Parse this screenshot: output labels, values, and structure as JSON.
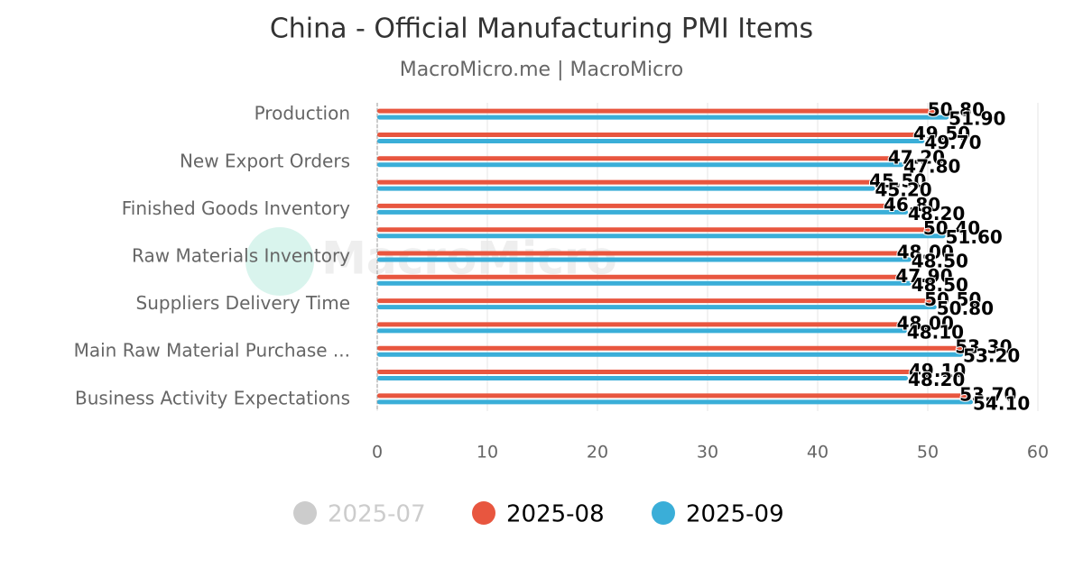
{
  "chart_data": {
    "type": "hbar",
    "title": "China - Official Manufacturing PMI Items",
    "subtitle": "MacroMicro.me | MacroMicro",
    "watermark": "MacroMicro",
    "categories": [
      "Production",
      null,
      "New Export Orders",
      null,
      "Finished Goods Inventory",
      null,
      "Raw Materials Inventory",
      null,
      "Suppliers Delivery Time",
      null,
      "Main Raw Material Purchase ...",
      null,
      "Business Activity Expectations"
    ],
    "series": [
      {
        "name": "2025-07",
        "color": "#cccccc",
        "visible": false,
        "values": [
          null,
          null,
          null,
          null,
          null,
          null,
          null,
          null,
          null,
          null,
          null,
          null,
          null
        ]
      },
      {
        "name": "2025-08",
        "color": "#e8563f",
        "visible": true,
        "values": [
          50.8,
          49.5,
          47.2,
          45.5,
          46.8,
          50.4,
          48,
          47.9,
          50.5,
          48,
          53.3,
          49.1,
          53.7
        ],
        "value_labels": [
          "50.80",
          "49.50",
          "47.20",
          "45.50",
          "46.80",
          "50.40",
          "48.00",
          "47.90",
          "50.50",
          "48.00",
          "53.30",
          "49.10",
          "53.70"
        ]
      },
      {
        "name": "2025-09",
        "color": "#3aaed8",
        "visible": true,
        "values": [
          51.9,
          49.7,
          47.8,
          45.2,
          48.2,
          51.6,
          48.5,
          48.5,
          50.8,
          48.1,
          53.2,
          48.2,
          54.1
        ],
        "value_labels": [
          "51.90",
          "49.70",
          "47.80",
          "45.20",
          "48.20",
          "51.60",
          "48.50",
          "48.50",
          "50.80",
          "48.10",
          "53.20",
          "48.20",
          "54.10"
        ]
      }
    ],
    "xlim": [
      0,
      60
    ],
    "xticks": [
      0,
      10,
      20,
      30,
      40,
      50,
      60
    ],
    "grid": true
  }
}
